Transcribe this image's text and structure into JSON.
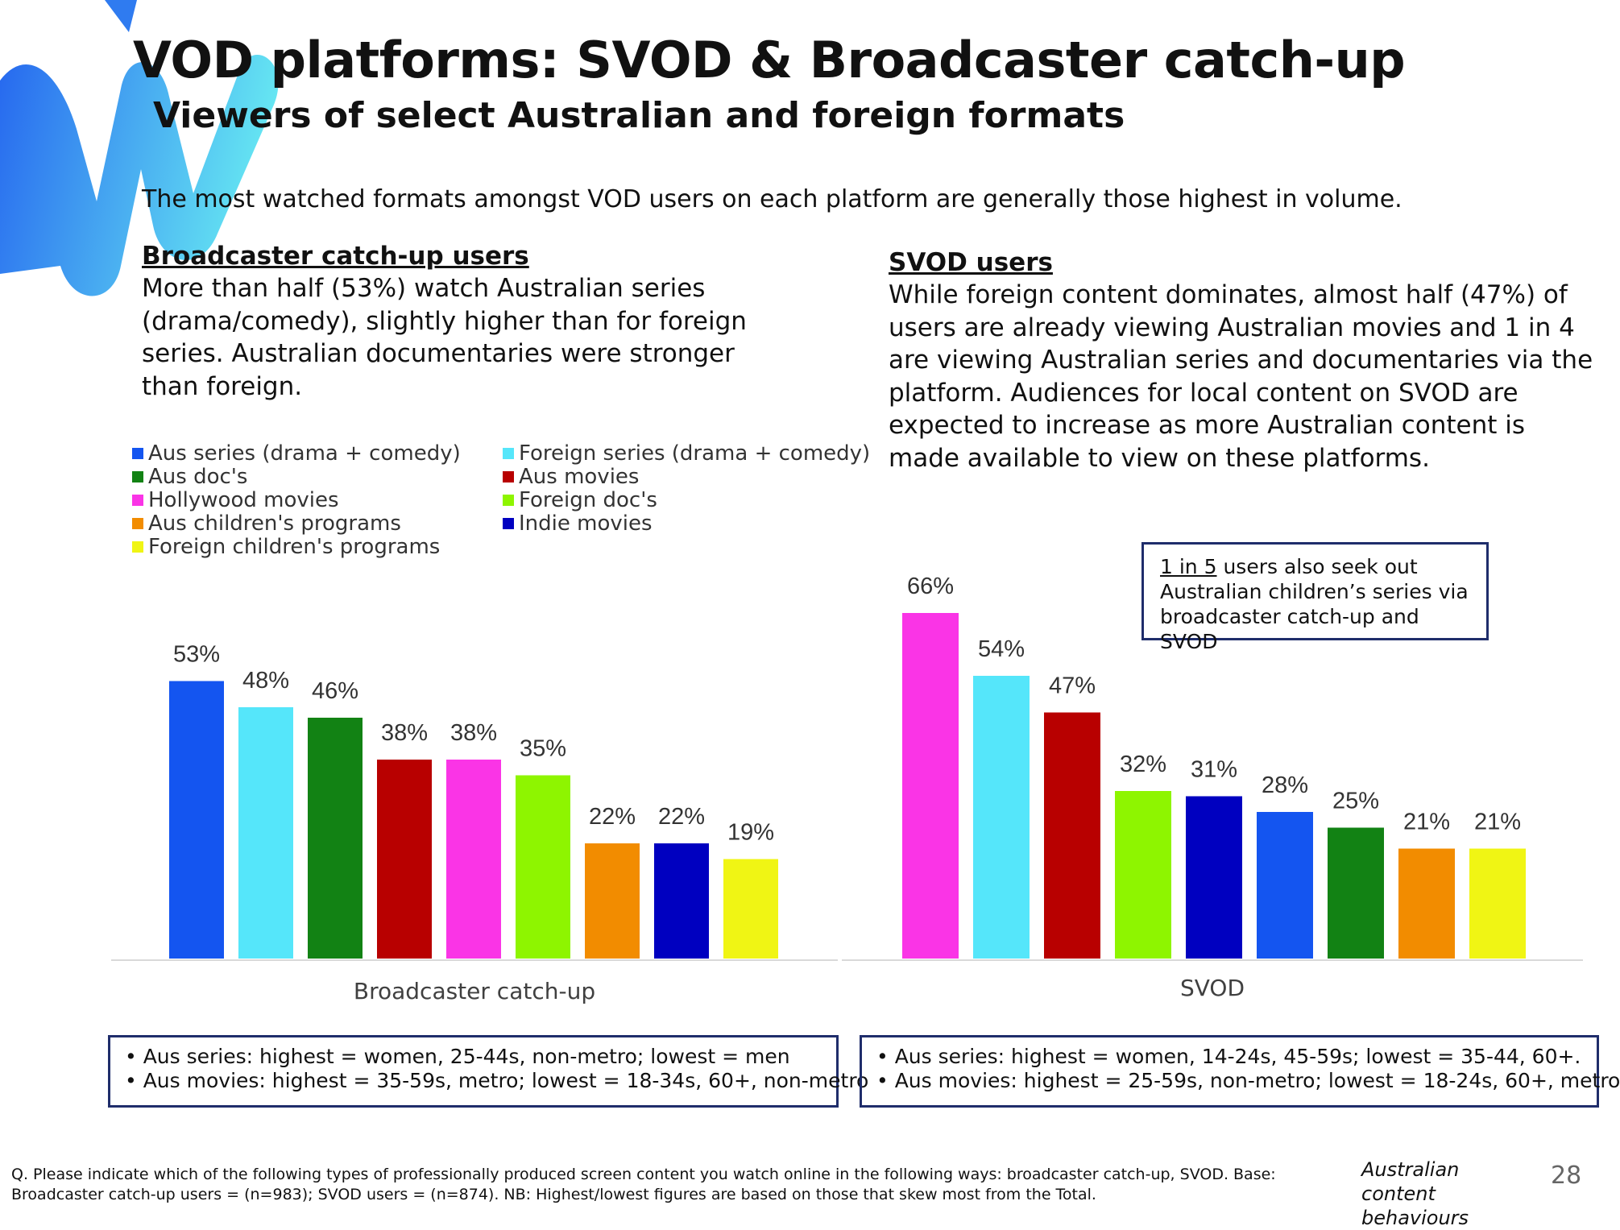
{
  "title": "VOD platforms: SVOD & Broadcaster catch-up",
  "subtitle": "Viewers of select Australian and foreign formats",
  "intro": "The most watched formats amongst VOD users on each platform are generally those highest in volume.",
  "left_section": {
    "heading": "Broadcaster catch-up users",
    "text": "More than half (53%) watch Australian series (drama/comedy), slightly higher than for foreign series. Australian documentaries were stronger than foreign."
  },
  "right_section": {
    "heading": "SVOD users",
    "text": "While foreign content dominates, almost half (47%) of users are already viewing Australian movies and 1 in 4 are viewing Australian series and documentaries via the platform. Audiences for local content on SVOD are expected to increase as more Australian content is made available to view on these platforms."
  },
  "legend": [
    {
      "label": "Aus series (drama + comedy)",
      "color": "#1455f0"
    },
    {
      "label": "Foreign series (drama + comedy)",
      "color": "#55e6fa"
    },
    {
      "label": "Aus doc's",
      "color": "#128214"
    },
    {
      "label": "Aus movies",
      "color": "#b80000"
    },
    {
      "label": "Hollywood movies",
      "color": "#fa34e6"
    },
    {
      "label": "Foreign doc's",
      "color": "#8ef500"
    },
    {
      "label": "Aus children's programs",
      "color": "#f28c00"
    },
    {
      "label": "Indie movies",
      "color": "#0000c0"
    },
    {
      "label": "Foreign children's programs",
      "color": "#f0f514"
    }
  ],
  "chart_data": [
    {
      "type": "bar",
      "title": "Broadcaster catch-up",
      "xlabel": "Broadcaster catch-up",
      "ylabel": "",
      "ylim": [
        0,
        70
      ],
      "unit": "%",
      "categories": [
        "Aus series (drama + comedy)",
        "Foreign series (drama + comedy)",
        "Aus doc's",
        "Aus movies",
        "Hollywood movies",
        "Foreign doc's",
        "Aus children's programs",
        "Indie movies",
        "Foreign children's programs"
      ],
      "values": [
        53,
        48,
        46,
        38,
        38,
        35,
        22,
        22,
        19
      ],
      "labels": [
        "53%",
        "48%",
        "46%",
        "38%",
        "38%",
        "35%",
        "22%",
        "22%",
        "19%"
      ],
      "colors": [
        "#1455f0",
        "#55e6fa",
        "#128214",
        "#b80000",
        "#fa34e6",
        "#8ef500",
        "#f28c00",
        "#0000c0",
        "#f0f514"
      ]
    },
    {
      "type": "bar",
      "title": "SVOD",
      "xlabel": "SVOD",
      "ylabel": "",
      "ylim": [
        0,
        70
      ],
      "unit": "%",
      "categories": [
        "Hollywood movies",
        "Foreign series (drama + comedy)",
        "Aus movies",
        "Foreign doc's",
        "Indie movies",
        "Aus series (drama + comedy)",
        "Aus doc's",
        "Aus children's programs",
        "Foreign children's programs"
      ],
      "values": [
        66,
        54,
        47,
        32,
        31,
        28,
        25,
        21,
        21
      ],
      "labels": [
        "66%",
        "54%",
        "47%",
        "32%",
        "31%",
        "28%",
        "25%",
        "21%",
        "21%"
      ],
      "colors": [
        "#fa34e6",
        "#55e6fa",
        "#b80000",
        "#8ef500",
        "#0000c0",
        "#1455f0",
        "#128214",
        "#f28c00",
        "#f0f514"
      ]
    }
  ],
  "callout": {
    "underlined": "1 in 5",
    "text": " users also seek out Australian children’s series via broadcaster catch-up and SVOD"
  },
  "notes_left": [
    "Aus series: highest = women, 25-44s, non-metro; lowest = men",
    "Aus movies: highest = 35-59s, metro; lowest = 18-34s, 60+, non-metro"
  ],
  "notes_right": [
    "Aus series: highest = women, 14-24s, 45-59s; lowest = 35-44, 60+.",
    "Aus movies: highest = 25-59s, non-metro; lowest = 18-24s, 60+, metro"
  ],
  "footnote": "Q. Please indicate which of the following types of professionally produced screen content you watch online in the following ways: broadcaster catch-up, SVOD. Base: Broadcaster catch-up users = (n=983); SVOD users = (n=874). NB: Highest/lowest figures are based on those that skew most from the Total.",
  "branding": "Australian content behaviours",
  "page_number": "28"
}
